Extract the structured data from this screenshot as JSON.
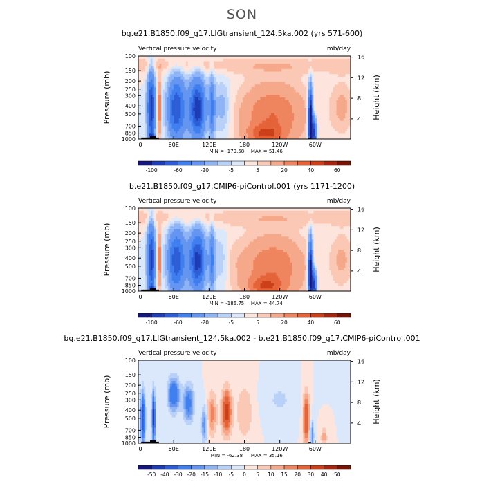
{
  "page": {
    "season_title": "SON"
  },
  "chart_data": [
    {
      "type": "heatmap",
      "title": "bg.e21.B1850.f09_g17.LIGtransient_124.5ka.002 (yrs 571-600)",
      "left_string": "Vertical pressure velocity",
      "right_string": "mb/day",
      "ylabel": "Pressure (mb)",
      "ylabel_right": "Height (km)",
      "x_ticks": [
        "0",
        "60E",
        "120E",
        "180",
        "120W",
        "60W"
      ],
      "x_tick_values": [
        0,
        60,
        120,
        180,
        240,
        300
      ],
      "xlim": [
        0,
        360
      ],
      "y_ticks": [
        "100",
        "150",
        "200",
        "250",
        "300",
        "400",
        "500",
        "700",
        "850",
        "1000"
      ],
      "y_tick_values": [
        100,
        150,
        200,
        250,
        300,
        400,
        500,
        700,
        850,
        1000
      ],
      "ylim": [
        1000,
        100
      ],
      "y_scale": "log",
      "right_ticks": [
        "16",
        "12",
        "8",
        "4"
      ],
      "right_tick_values": [
        16,
        12,
        8,
        4
      ],
      "min_label": "MIN = -179.58",
      "max_label": "MAX = 51.46",
      "min": -179.58,
      "max": 51.46,
      "colorbar_levels": [
        -100,
        -80,
        -60,
        -40,
        -20,
        -10,
        -5,
        0,
        5,
        10,
        20,
        30,
        40,
        50,
        60
      ],
      "colorbar_labels": [
        "-100",
        "-60",
        "-20",
        "-5",
        "5",
        "20",
        "40",
        "60"
      ],
      "colors": [
        "#16177e",
        "#1d3cb5",
        "#2d5ed8",
        "#3f7ff0",
        "#6496f1",
        "#8fb4f5",
        "#b9d0f8",
        "#dbe8fb",
        "#fde5dd",
        "#fbc8b5",
        "#f6a88a",
        "#ef855f",
        "#e56339",
        "#cc4019",
        "#a7250d",
        "#791306"
      ],
      "grid": false
    },
    {
      "type": "heatmap",
      "title": "b.e21.B1850.f09_g17.CMIP6-piControl.001 (yrs 1171-1200)",
      "left_string": "Vertical pressure velocity",
      "right_string": "mb/day",
      "ylabel": "Pressure (mb)",
      "ylabel_right": "Height (km)",
      "x_ticks": [
        "0",
        "60E",
        "120E",
        "180",
        "120W",
        "60W"
      ],
      "x_tick_values": [
        0,
        60,
        120,
        180,
        240,
        300
      ],
      "xlim": [
        0,
        360
      ],
      "y_ticks": [
        "100",
        "150",
        "200",
        "250",
        "300",
        "400",
        "500",
        "700",
        "850",
        "1000"
      ],
      "y_tick_values": [
        100,
        150,
        200,
        250,
        300,
        400,
        500,
        700,
        850,
        1000
      ],
      "ylim": [
        1000,
        100
      ],
      "y_scale": "log",
      "right_ticks": [
        "16",
        "12",
        "8",
        "4"
      ],
      "right_tick_values": [
        16,
        12,
        8,
        4
      ],
      "min_label": "MIN = -186.75",
      "max_label": "MAX = 44.74",
      "min": -186.75,
      "max": 44.74,
      "colorbar_levels": [
        -100,
        -80,
        -60,
        -40,
        -20,
        -10,
        -5,
        0,
        5,
        10,
        20,
        30,
        40,
        50,
        60
      ],
      "colorbar_labels": [
        "-100",
        "-60",
        "-20",
        "-5",
        "5",
        "20",
        "40",
        "60"
      ],
      "colors": [
        "#16177e",
        "#1d3cb5",
        "#2d5ed8",
        "#3f7ff0",
        "#6496f1",
        "#8fb4f5",
        "#b9d0f8",
        "#dbe8fb",
        "#fde5dd",
        "#fbc8b5",
        "#f6a88a",
        "#ef855f",
        "#e56339",
        "#cc4019",
        "#a7250d",
        "#791306"
      ],
      "grid": false
    },
    {
      "type": "heatmap",
      "title": "bg.e21.B1850.f09_g17.LIGtransient_124.5ka.002 - b.e21.B1850.f09_g17.CMIP6-piControl.001",
      "left_string": "Vertical pressure velocity",
      "right_string": "mb/day",
      "ylabel": "Pressure (mb)",
      "ylabel_right": "Height (km)",
      "x_ticks": [
        "0",
        "60E",
        "120E",
        "180",
        "120W",
        "60W"
      ],
      "x_tick_values": [
        0,
        60,
        120,
        180,
        240,
        300
      ],
      "xlim": [
        0,
        360
      ],
      "y_ticks": [
        "100",
        "150",
        "200",
        "250",
        "300",
        "400",
        "500",
        "700",
        "850",
        "1000"
      ],
      "y_tick_values": [
        100,
        150,
        200,
        250,
        300,
        400,
        500,
        700,
        850,
        1000
      ],
      "ylim": [
        1000,
        100
      ],
      "y_scale": "log",
      "right_ticks": [
        "16",
        "12",
        "8",
        "4"
      ],
      "right_tick_values": [
        16,
        12,
        8,
        4
      ],
      "min_label": "MIN = -62.38",
      "max_label": "MAX = 35.16",
      "min": -62.38,
      "max": 35.16,
      "colorbar_levels": [
        -50,
        -40,
        -30,
        -20,
        -15,
        -10,
        -5,
        0,
        5,
        10,
        15,
        20,
        30,
        40,
        50
      ],
      "colorbar_labels": [
        "-50",
        "-40",
        "-30",
        "-20",
        "-15",
        "-10",
        "-5",
        "0",
        "5",
        "10",
        "15",
        "20",
        "30",
        "40",
        "50"
      ],
      "colors": [
        "#16177e",
        "#1d3cb5",
        "#2d5ed8",
        "#3f7ff0",
        "#6496f1",
        "#8fb4f5",
        "#b9d0f8",
        "#dbe8fb",
        "#fde5dd",
        "#fbc8b5",
        "#f6a88a",
        "#ef855f",
        "#e56339",
        "#cc4019",
        "#a7250d",
        "#791306"
      ],
      "grid": false
    }
  ]
}
